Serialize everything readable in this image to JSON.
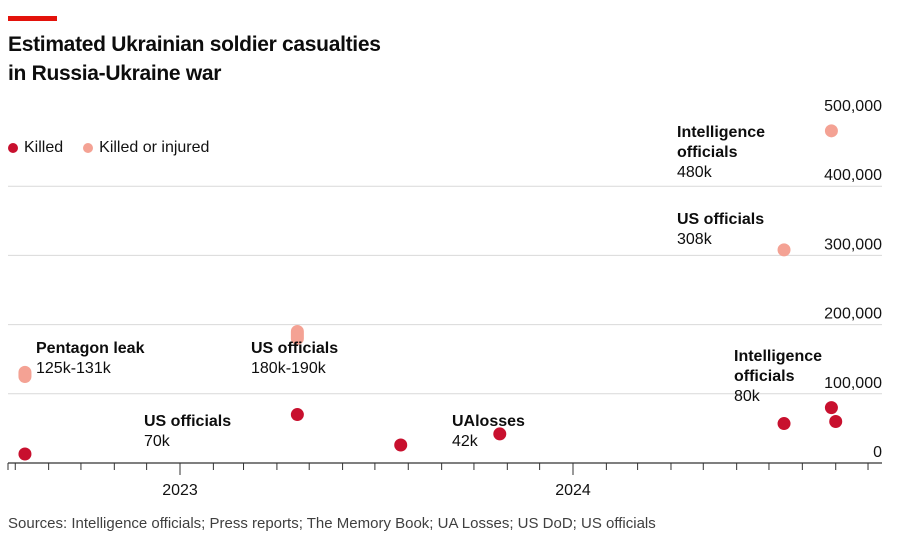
{
  "header": {
    "title_line1": "Estimated Ukrainian soldier casualties",
    "title_line2": "in Russia-Ukraine war"
  },
  "legend": {
    "items": [
      {
        "label": "Killed",
        "color": "#c8102e"
      },
      {
        "label": "Killed or injured",
        "color": "#f4a294"
      }
    ]
  },
  "footer": {
    "source": "Sources: Intelligence officials; Press reports; The Memory Book; UA Losses; US DoD; US officials"
  },
  "chart_data": {
    "type": "scatter",
    "title": "Estimated Ukrainian soldier casualties in Russia-Ukraine war",
    "xlabel": "",
    "ylabel": "",
    "ylim": [
      0,
      500000
    ],
    "yticks": [
      0,
      100000,
      200000,
      300000,
      400000,
      500000
    ],
    "ytick_labels": [
      "0",
      "100,000",
      "200,000",
      "300,000",
      "400,000",
      "500,000"
    ],
    "xlim": [
      "2022-07-25",
      "2024-11-15"
    ],
    "xtick_labels": [
      {
        "label": "2023",
        "date": "2023-01-01"
      },
      {
        "label": "2024",
        "date": "2024-01-01"
      }
    ],
    "minor_ticks": "monthly",
    "grid": true,
    "legend_position": "top-left",
    "series": [
      {
        "name": "Killed",
        "color": "#c8102e",
        "points": [
          {
            "date": "2022-08-10",
            "value": 13000
          },
          {
            "date": "2023-04-20",
            "value": 70000
          },
          {
            "date": "2023-07-25",
            "value": 26000
          },
          {
            "date": "2023-10-25",
            "value": 42000
          },
          {
            "date": "2024-07-15",
            "value": 57000
          },
          {
            "date": "2024-08-28",
            "value": 80000
          },
          {
            "date": "2024-09-01",
            "value": 60000
          }
        ]
      },
      {
        "name": "Killed or injured",
        "color": "#f4a294",
        "points": [
          {
            "date": "2022-08-10",
            "low": 125000,
            "high": 131000
          },
          {
            "date": "2023-04-20",
            "low": 180000,
            "high": 190000
          },
          {
            "date": "2024-07-15",
            "value": 308000
          },
          {
            "date": "2024-08-28",
            "value": 480000
          }
        ]
      }
    ],
    "annotations": [
      {
        "title": "Pentagon leak",
        "value": "125k-131k",
        "date": "2022-08-10",
        "anchor": "start"
      },
      {
        "title": "US officials",
        "value": "180k-190k",
        "date": "2023-04-20",
        "anchor": "start"
      },
      {
        "title": "US officials",
        "value": "70k",
        "date": "2023-04-20",
        "anchor": "end"
      },
      {
        "title": "UAlosses",
        "value": "42k",
        "date": "2023-10-25",
        "anchor": "start"
      },
      {
        "title": "US officials",
        "value": "308k",
        "date": "2024-07-15",
        "anchor": "end"
      },
      {
        "title": "Intelligence officials",
        "value": "480k",
        "date": "2024-08-28",
        "anchor": "end"
      },
      {
        "title": "Intelligence officials",
        "value": "80k",
        "date": "2024-08-28",
        "anchor": "end"
      }
    ]
  }
}
